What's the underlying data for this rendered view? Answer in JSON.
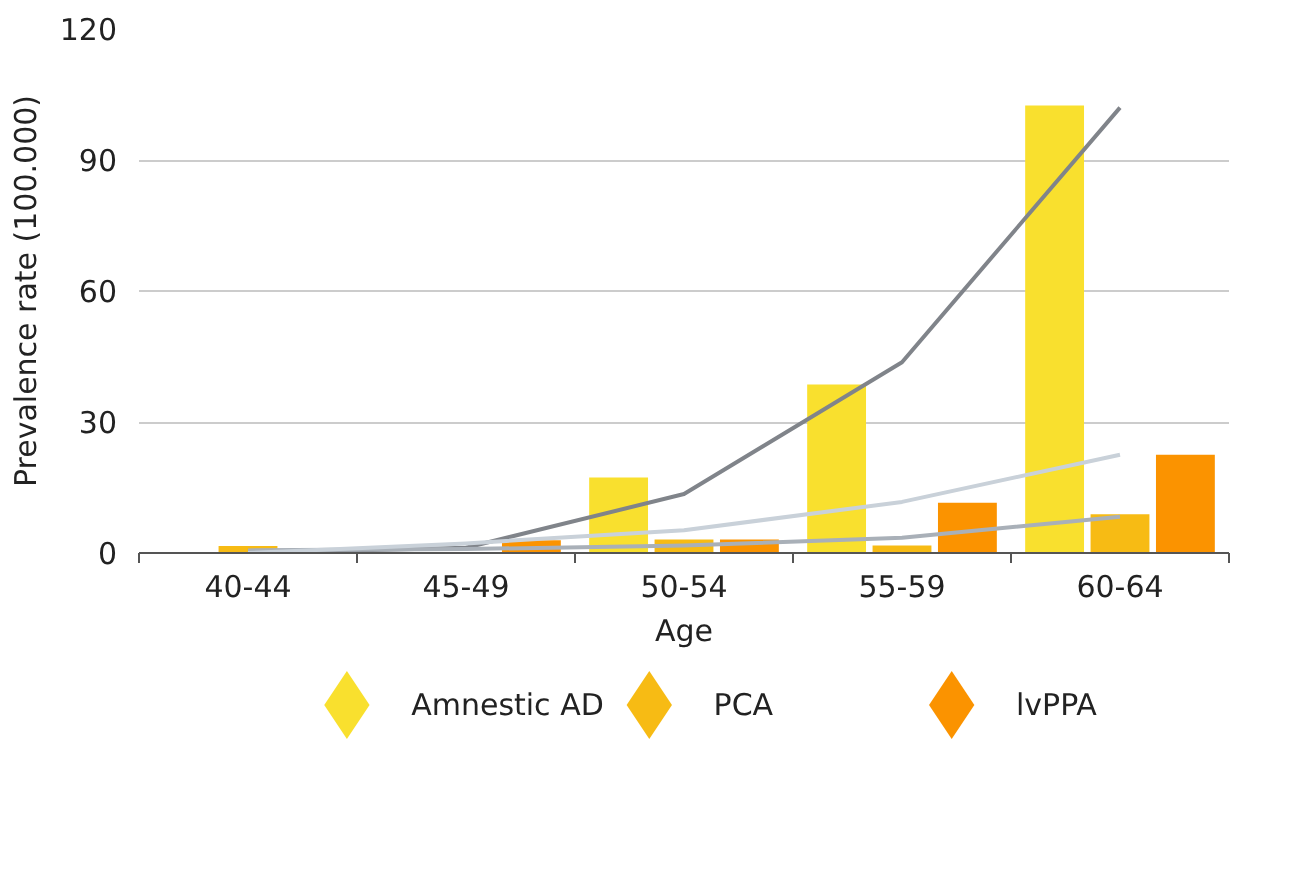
{
  "chart_data": {
    "type": "bar",
    "xlabel": "Age",
    "ylabel": "Prevalence rate (100.000)",
    "categories": [
      "40-44",
      "45-49",
      "50-54",
      "55-59",
      "60-64"
    ],
    "series": [
      {
        "name": "Amnestic AD",
        "color": "#f9e02e",
        "values": [
          null,
          null,
          17.3,
          38.6,
          102.5
        ]
      },
      {
        "name": "PCA",
        "color": "#f7bb14",
        "values": [
          1.6,
          null,
          3.1,
          1.7,
          8.9
        ]
      },
      {
        "name": "lvPPA",
        "color": "#fb9300",
        "values": [
          null,
          2.9,
          3.1,
          11.5,
          22.5
        ]
      },
      {
        "type": "line",
        "color": "#80848a",
        "values": [
          0,
          1.2,
          13.5,
          43.7,
          102
        ]
      },
      {
        "type": "line",
        "color": "#a9b0b8",
        "values": [
          0.6,
          0.9,
          1.7,
          3.5,
          8.3
        ]
      },
      {
        "type": "line",
        "color": "#c9d1d9",
        "values": [
          0,
          2.2,
          5.2,
          11.7,
          22.5
        ]
      }
    ],
    "ylim": [
      0,
      120
    ],
    "yticks": [
      0,
      30,
      60,
      90,
      120
    ],
    "grid": "y",
    "legend": "bottom"
  }
}
